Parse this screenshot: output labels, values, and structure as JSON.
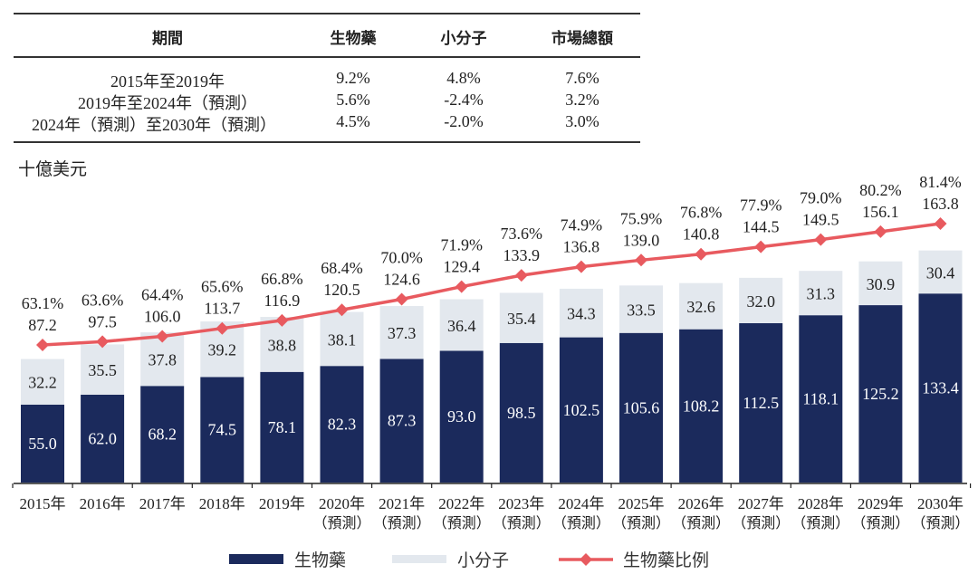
{
  "table": {
    "headers": [
      "期間",
      "生物藥",
      "小分子",
      "市場總額"
    ],
    "rows": [
      [
        "2015年至2019年",
        "9.2%",
        "4.8%",
        "7.6%"
      ],
      [
        "2019年至2024年（預測）",
        "5.6%",
        "-2.4%",
        "3.2%"
      ],
      [
        "2024年（預測）至2030年（預測）",
        "4.5%",
        "-2.0%",
        "3.0%"
      ]
    ]
  },
  "colors": {
    "biologics": "#1b2a5c",
    "small_molecule": "#e3e8ee",
    "ratio_line": "#e85a5f"
  },
  "chart_data": {
    "type": "bar",
    "stacked": true,
    "ylabel": "十億美元",
    "categories": [
      "2015年",
      "2016年",
      "2017年",
      "2018年",
      "2019年",
      "2020年",
      "2021年",
      "2022年",
      "2023年",
      "2024年",
      "2025年",
      "2026年",
      "2027年",
      "2028年",
      "2029年",
      "2030年"
    ],
    "category_sublabels": [
      "",
      "",
      "",
      "",
      "",
      "（預測）",
      "（預測）",
      "（預測）",
      "（預測）",
      "（預測）",
      "（預測）",
      "（預測）",
      "（預測）",
      "（預測）",
      "（預測）",
      "（預測）"
    ],
    "series": [
      {
        "name": "生物藥",
        "values": [
          55.0,
          62.0,
          68.2,
          74.5,
          78.1,
          82.3,
          87.3,
          93.0,
          98.5,
          102.5,
          105.6,
          108.2,
          112.5,
          118.1,
          125.2,
          133.4
        ]
      },
      {
        "name": "小分子",
        "values": [
          32.2,
          35.5,
          37.8,
          39.2,
          38.8,
          38.1,
          37.3,
          36.4,
          35.4,
          34.3,
          33.5,
          32.6,
          32.0,
          31.3,
          30.9,
          30.4
        ]
      }
    ],
    "totals": [
      87.2,
      97.5,
      106.0,
      113.7,
      116.9,
      120.5,
      124.6,
      129.4,
      133.9,
      136.8,
      139.0,
      140.8,
      144.5,
      149.5,
      156.1,
      163.8
    ],
    "line_series": {
      "name": "生物藥比例",
      "values": [
        63.1,
        63.6,
        64.4,
        65.6,
        66.8,
        68.4,
        70.0,
        71.9,
        73.6,
        74.9,
        75.9,
        76.8,
        77.9,
        79.0,
        80.2,
        81.4
      ],
      "unit": "%"
    },
    "legend": [
      "生物藥",
      "小分子",
      "生物藥比例"
    ],
    "legend_position": "bottom"
  }
}
